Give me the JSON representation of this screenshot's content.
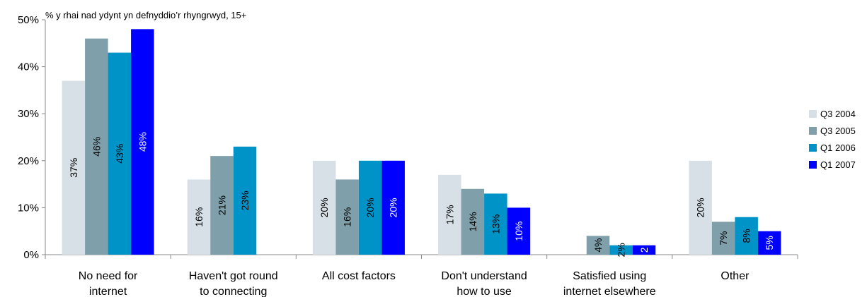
{
  "chart_data": {
    "type": "bar",
    "subtitle": "% y rhai nad ydynt yn defnyddio’r rhyngrwyd, 15+",
    "categories": [
      [
        "No need for",
        "internet"
      ],
      [
        "Haven't got round",
        "to connecting"
      ],
      [
        "All cost factors"
      ],
      [
        "Don't understand",
        "how to use"
      ],
      [
        "Satisfied using",
        "internet elsewhere"
      ],
      [
        "Other"
      ]
    ],
    "ylim": [
      0,
      50
    ],
    "yticks": [
      "0%",
      "10%",
      "20%",
      "30%",
      "40%",
      "50%"
    ],
    "ytick_values": [
      0,
      10,
      20,
      30,
      40,
      50
    ],
    "legend_position": "right",
    "series": [
      {
        "name": "Q3 2004",
        "color": "#d6e0e6",
        "label_color": "#000000",
        "values": [
          37,
          16,
          20,
          17,
          null,
          20
        ],
        "labels": [
          "37%",
          "16%",
          "20%",
          "17%",
          "",
          "20%"
        ]
      },
      {
        "name": "Q3 2005",
        "color": "#7f9faa",
        "label_color": "#000000",
        "values": [
          46,
          21,
          16,
          14,
          4,
          7
        ],
        "labels": [
          "46%",
          "21%",
          "16%",
          "14%",
          "4%",
          "7%"
        ]
      },
      {
        "name": "Q1 2006",
        "color": "#0093c8",
        "label_color": "#000000",
        "values": [
          43,
          23,
          20,
          13,
          2,
          8
        ],
        "labels": [
          "43%",
          "23%",
          "20%",
          "13%",
          "2%",
          "8%"
        ]
      },
      {
        "name": "Q1 2007",
        "color": "#0000ff",
        "label_color": "#ffffff",
        "values": [
          48,
          null,
          20,
          10,
          2,
          5
        ],
        "labels": [
          "48%",
          "",
          "20%",
          "10%",
          "2",
          "5%"
        ]
      }
    ]
  }
}
